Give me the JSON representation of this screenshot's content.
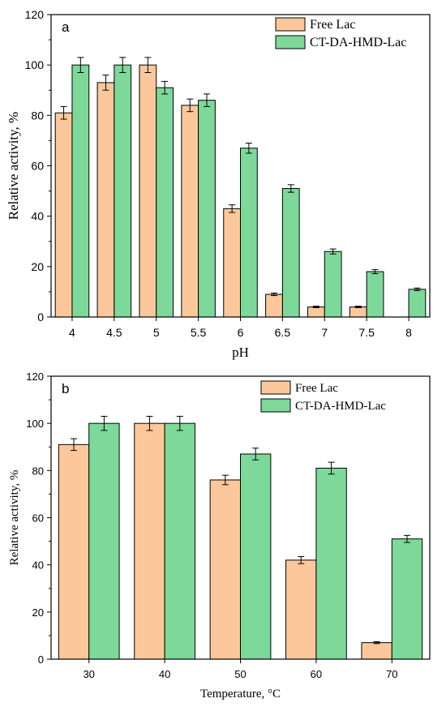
{
  "colors": {
    "free": "#FCC89B",
    "ct": "#7DD99A",
    "stroke": "#000000"
  },
  "chart_data": [
    {
      "type": "bar",
      "panel_label": "a",
      "categories": [
        "4",
        "4.5",
        "5",
        "5.5",
        "6",
        "6.5",
        "7",
        "7.5",
        "8"
      ],
      "series": [
        {
          "name": "Free Lac",
          "values": [
            81,
            93,
            100,
            84,
            43,
            9,
            4,
            4,
            null
          ],
          "errors": [
            2.5,
            3,
            3,
            2.5,
            1.5,
            0.5,
            0.3,
            0.3,
            null
          ]
        },
        {
          "name": "CT-DA-HMD-Lac",
          "values": [
            100,
            100,
            91,
            86,
            67,
            51,
            26,
            18,
            11
          ],
          "errors": [
            3,
            3,
            2.5,
            2.5,
            2,
            1.5,
            1,
            0.8,
            0.5
          ]
        }
      ],
      "xlabel": "pH",
      "ylabel": "Relative activity, %",
      "ylim": [
        0,
        120
      ],
      "yticks": [
        0,
        20,
        40,
        60,
        80,
        100,
        120
      ],
      "legend": "top-right"
    },
    {
      "type": "bar",
      "panel_label": "b",
      "categories": [
        "30",
        "40",
        "50",
        "60",
        "70"
      ],
      "series": [
        {
          "name": "Free Lac",
          "values": [
            91,
            100,
            76,
            42,
            7
          ],
          "errors": [
            2.5,
            3,
            2,
            1.5,
            0.4
          ]
        },
        {
          "name": "CT-DA-HMD-Lac",
          "values": [
            100,
            100,
            87,
            81,
            51
          ],
          "errors": [
            3,
            3,
            2.5,
            2.5,
            1.5
          ]
        }
      ],
      "xlabel": "Temperature, °C",
      "ylabel": "Relative activity, %",
      "ylim": [
        0,
        120
      ],
      "yticks": [
        0,
        20,
        40,
        60,
        80,
        100,
        120
      ],
      "legend": "top-right"
    }
  ]
}
